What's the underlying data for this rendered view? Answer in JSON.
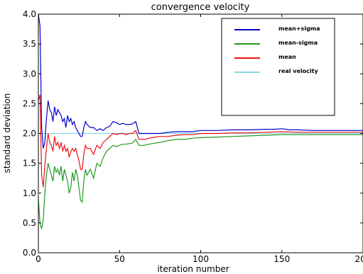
{
  "chart_data": {
    "type": "line",
    "title": "convergence velocity",
    "xlabel": "iteration number",
    "ylabel": "standard deviation",
    "xlim": [
      0,
      200
    ],
    "ylim": [
      0,
      4.0
    ],
    "xticks": [
      0,
      50,
      100,
      150,
      200
    ],
    "yticks": [
      0.0,
      0.5,
      1.0,
      1.5,
      2.0,
      2.5,
      3.0,
      3.5,
      4.0
    ],
    "ytick_labels": [
      "0.0",
      "0.5",
      "1.0",
      "1.5",
      "2.0",
      "2.5",
      "3.0",
      "3.5",
      "4.0"
    ],
    "grid": false,
    "legend_position": "top-right",
    "series": [
      {
        "name": "mean+sigma",
        "color": "#0000cc",
        "x": [
          0,
          1,
          2,
          3,
          4,
          5,
          6,
          7,
          8,
          9,
          10,
          11,
          12,
          13,
          14,
          15,
          16,
          17,
          18,
          19,
          20,
          21,
          22,
          23,
          24,
          25,
          26,
          27,
          28,
          29,
          30,
          32,
          34,
          36,
          38,
          40,
          42,
          44,
          46,
          48,
          50,
          52,
          54,
          56,
          58,
          60,
          62,
          65,
          70,
          75,
          80,
          85,
          90,
          95,
          100,
          110,
          120,
          130,
          140,
          145,
          150,
          155,
          160,
          170,
          180,
          190,
          200
        ],
        "y": [
          4.0,
          3.8,
          2.1,
          1.75,
          1.85,
          2.25,
          2.55,
          2.4,
          2.35,
          2.2,
          2.45,
          2.3,
          2.4,
          2.35,
          2.3,
          2.2,
          2.25,
          2.1,
          2.3,
          2.2,
          2.25,
          2.15,
          2.2,
          2.1,
          2.05,
          2.0,
          1.95,
          1.95,
          2.1,
          2.2,
          2.15,
          2.1,
          2.1,
          2.05,
          2.08,
          2.05,
          2.1,
          2.12,
          2.2,
          2.18,
          2.15,
          2.17,
          2.15,
          2.15,
          2.16,
          2.2,
          2.0,
          2.0,
          2.0,
          2.0,
          2.02,
          2.03,
          2.03,
          2.03,
          2.05,
          2.05,
          2.06,
          2.06,
          2.07,
          2.07,
          2.08,
          2.06,
          2.06,
          2.05,
          2.05,
          2.05,
          2.05
        ]
      },
      {
        "name": "mean-sigma",
        "color": "#229922",
        "x": [
          0,
          1,
          2,
          3,
          4,
          5,
          6,
          7,
          8,
          9,
          10,
          11,
          12,
          13,
          14,
          15,
          16,
          17,
          18,
          19,
          20,
          21,
          22,
          23,
          24,
          25,
          26,
          27,
          28,
          29,
          30,
          32,
          34,
          36,
          38,
          40,
          42,
          44,
          46,
          48,
          50,
          52,
          54,
          56,
          58,
          60,
          62,
          65,
          70,
          75,
          80,
          85,
          90,
          95,
          100,
          110,
          120,
          130,
          140,
          150,
          160,
          170,
          180,
          190,
          200
        ],
        "y": [
          0.9,
          0.5,
          0.4,
          0.55,
          1.0,
          1.3,
          1.5,
          1.4,
          1.3,
          1.2,
          1.45,
          1.35,
          1.4,
          1.3,
          1.45,
          1.2,
          1.4,
          1.3,
          1.2,
          1.0,
          1.1,
          1.35,
          1.2,
          1.4,
          1.3,
          1.1,
          0.88,
          0.85,
          1.2,
          1.4,
          1.3,
          1.4,
          1.25,
          1.5,
          1.45,
          1.6,
          1.7,
          1.75,
          1.8,
          1.78,
          1.8,
          1.82,
          1.82,
          1.83,
          1.84,
          1.9,
          1.8,
          1.8,
          1.83,
          1.85,
          1.88,
          1.9,
          1.9,
          1.92,
          1.93,
          1.94,
          1.95,
          1.96,
          1.97,
          1.98,
          1.98,
          1.98,
          1.98,
          1.98,
          1.98
        ]
      },
      {
        "name": "mean",
        "color": "#ee1111",
        "x": [
          0,
          1,
          2,
          3,
          4,
          5,
          6,
          7,
          8,
          9,
          10,
          11,
          12,
          13,
          14,
          15,
          16,
          17,
          18,
          19,
          20,
          21,
          22,
          23,
          24,
          25,
          26,
          27,
          28,
          29,
          30,
          32,
          34,
          36,
          38,
          40,
          42,
          44,
          46,
          48,
          50,
          52,
          54,
          56,
          58,
          60,
          62,
          65,
          70,
          75,
          80,
          85,
          90,
          95,
          100,
          110,
          120,
          130,
          140,
          150,
          160,
          170,
          180,
          190,
          200
        ],
        "y": [
          2.55,
          2.65,
          1.3,
          1.1,
          1.45,
          1.75,
          2.0,
          1.85,
          1.8,
          1.7,
          1.95,
          1.8,
          1.85,
          1.75,
          1.85,
          1.7,
          1.8,
          1.7,
          1.75,
          1.6,
          1.7,
          1.75,
          1.7,
          1.75,
          1.65,
          1.55,
          1.4,
          1.4,
          1.65,
          1.8,
          1.75,
          1.75,
          1.65,
          1.8,
          1.75,
          1.85,
          1.9,
          1.95,
          2.0,
          1.98,
          2.0,
          2.0,
          1.98,
          2.0,
          2.0,
          2.05,
          1.9,
          1.9,
          1.93,
          1.95,
          1.95,
          1.97,
          1.98,
          1.98,
          2.0,
          2.0,
          2.01,
          2.01,
          2.02,
          2.03,
          2.02,
          2.02,
          2.02,
          2.02,
          2.02
        ]
      },
      {
        "name": "real velocity",
        "color": "#88d8e8",
        "x": [
          0,
          200
        ],
        "y": [
          2.0,
          2.0
        ]
      }
    ]
  }
}
